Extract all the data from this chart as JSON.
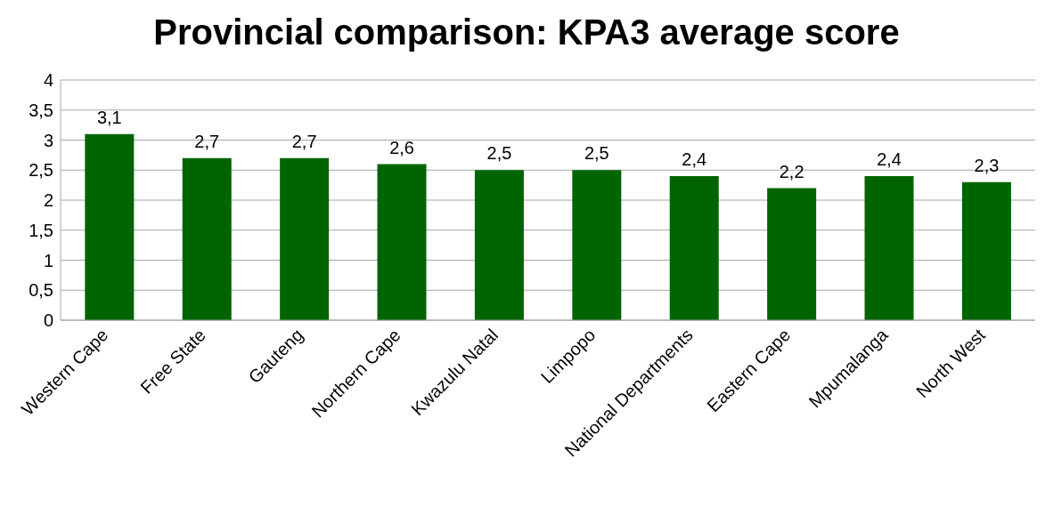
{
  "chart_data": {
    "type": "bar",
    "title": "Provincial comparison: KPA3 average score",
    "categories": [
      "Western Cape",
      "Free State",
      "Gauteng",
      "Northern Cape",
      "Kwazulu Natal",
      "Limpopo",
      "National Departments",
      "Eastern Cape",
      "Mpumalanga",
      "North West"
    ],
    "values": [
      3.1,
      2.7,
      2.7,
      2.6,
      2.5,
      2.5,
      2.4,
      2.2,
      2.4,
      2.3
    ],
    "value_labels": [
      "3,1",
      "2,7",
      "2,7",
      "2,6",
      "2,5",
      "2,5",
      "2,4",
      "2,2",
      "2,4",
      "2,3"
    ],
    "color": "#006400",
    "ylim": [
      0,
      4
    ],
    "yticks": [
      0,
      {
        "value": 0.5,
        "label": "0,5"
      },
      1,
      {
        "value": 1.5,
        "label": "1,5"
      },
      2,
      {
        "value": 2.5,
        "label": "2,5"
      },
      3,
      {
        "value": 3.5,
        "label": "3,5"
      },
      4
    ],
    "grid": "y"
  }
}
